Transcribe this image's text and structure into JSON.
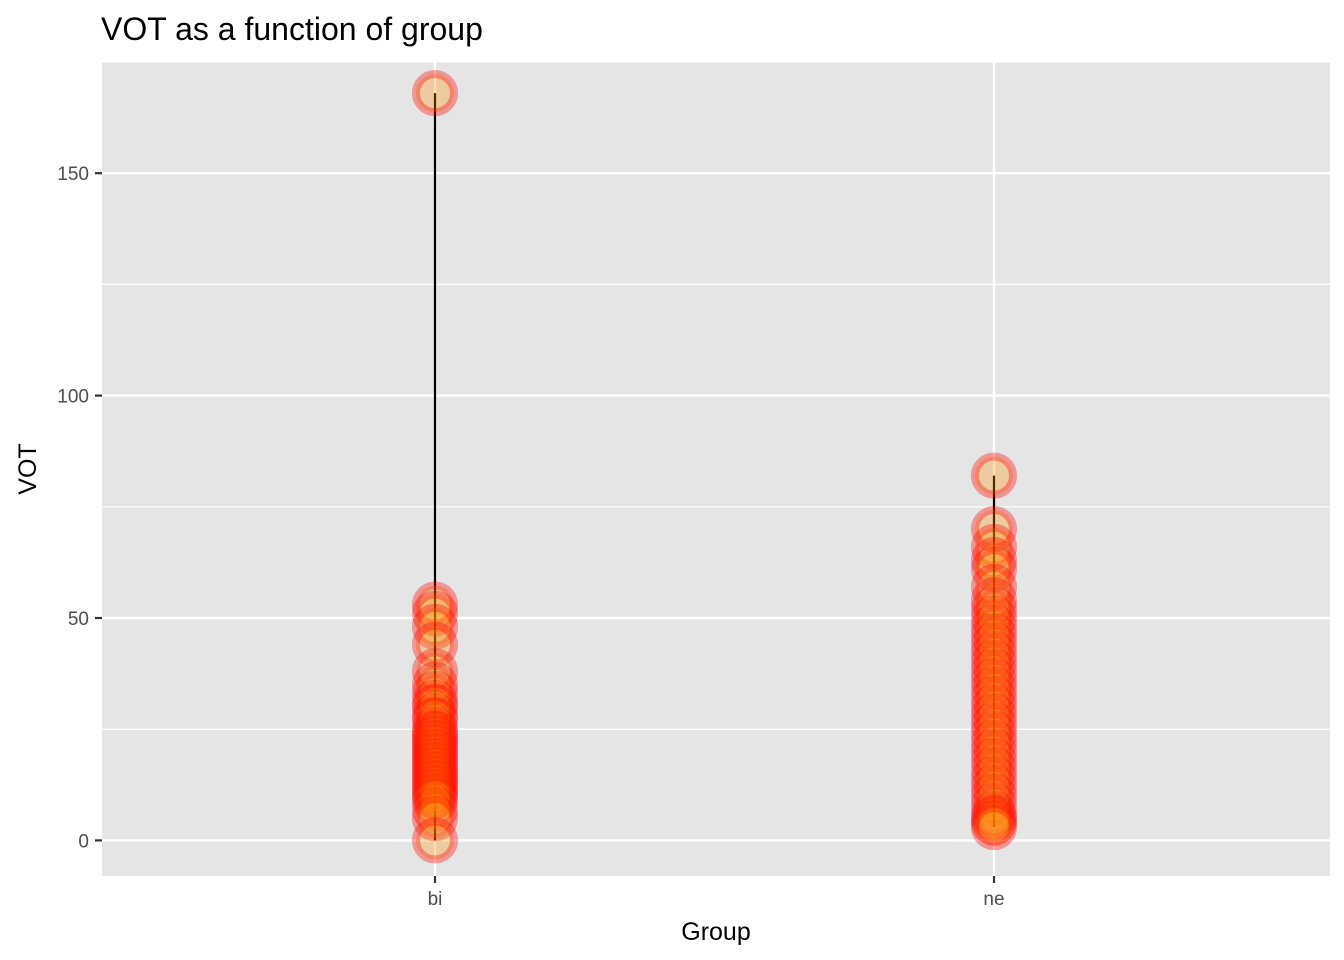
{
  "chart_data": {
    "type": "scatter",
    "title": "VOT as a function of group",
    "xlabel": "Group",
    "ylabel": "VOT",
    "categories": [
      "bi",
      "ne"
    ],
    "ylim": [
      -8,
      175
    ],
    "yticks": [
      0,
      50,
      100,
      150
    ],
    "grid": true,
    "colors": {
      "panel": "#e5e5e5",
      "grid": "#ffffff",
      "fill": "#ff8c00",
      "stroke": "#ff0000",
      "range_line": "#000000"
    },
    "range_lines": [
      {
        "group": "bi",
        "min": 0,
        "max": 168
      },
      {
        "group": "ne",
        "min": 3,
        "max": 82
      }
    ],
    "series": [
      {
        "group": "bi",
        "values": [
          168,
          53,
          51,
          48,
          44,
          38,
          35,
          33,
          31,
          30,
          28,
          27,
          25,
          24,
          23,
          22,
          21,
          20,
          19,
          18,
          17,
          16,
          15,
          14,
          13,
          12,
          11,
          10,
          9,
          7,
          5,
          0
        ]
      },
      {
        "group": "ne",
        "values": [
          82,
          70,
          66,
          63,
          61,
          57,
          54,
          52,
          50,
          48,
          46,
          44,
          42,
          40,
          38,
          36,
          34,
          32,
          30,
          28,
          26,
          24,
          22,
          20,
          18,
          16,
          14,
          12,
          10,
          8,
          6,
          5,
          4,
          3
        ]
      }
    ]
  }
}
